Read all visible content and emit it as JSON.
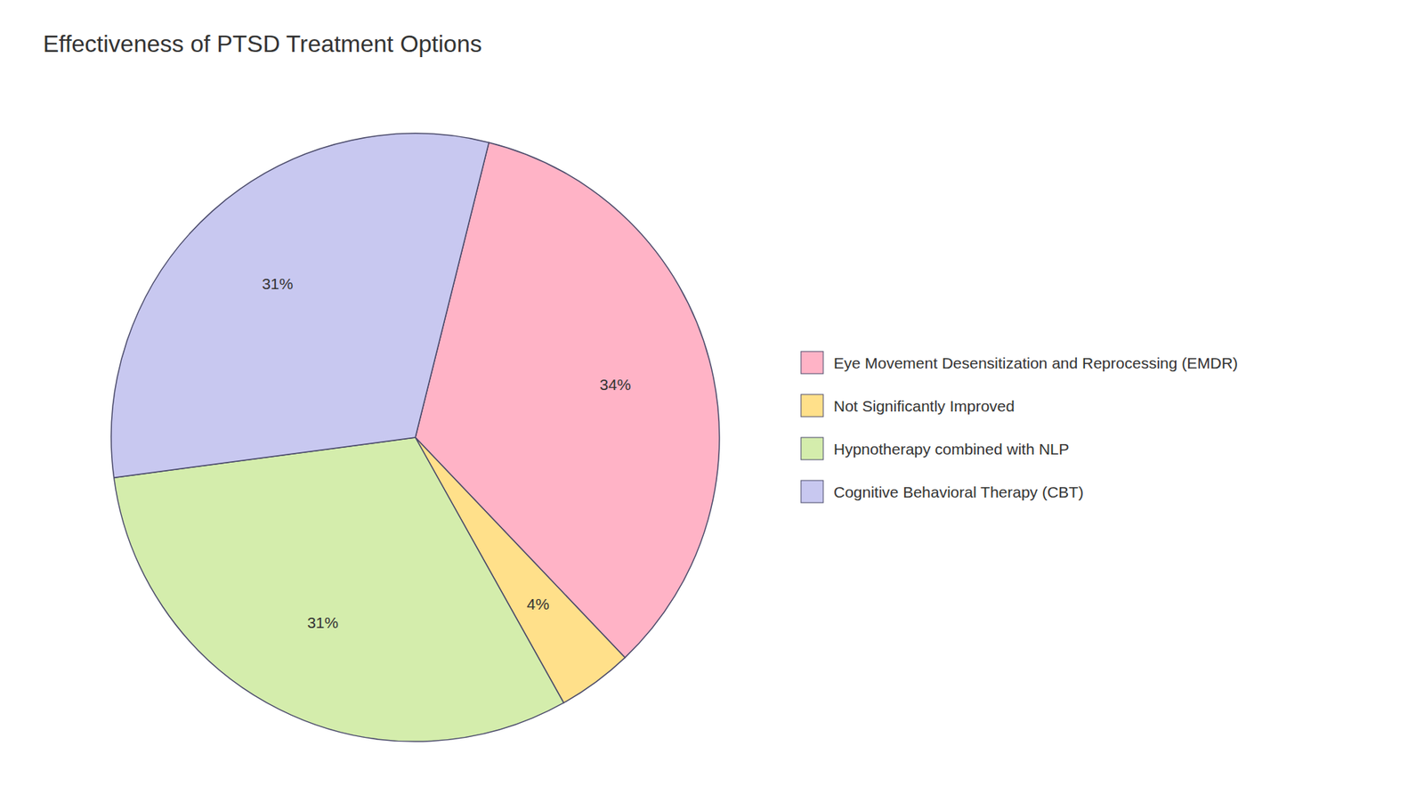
{
  "chart_data": {
    "type": "pie",
    "title": "Effectiveness of PTSD Treatment Options",
    "categories": [
      "Eye Movement Desensitization and Reprocessing (EMDR)",
      "Not Significantly Improved",
      "Hypnotherapy combined with NLP",
      "Cognitive Behavioral Therapy (CBT)"
    ],
    "values": [
      34,
      4,
      31,
      31
    ],
    "value_labels": [
      "34%",
      "4%",
      "31%",
      "31%"
    ],
    "colors": [
      "#FFB3C6",
      "#FFE08A",
      "#D4EDAC",
      "#C8C8F0"
    ],
    "data_labels": true,
    "legend": "right"
  }
}
